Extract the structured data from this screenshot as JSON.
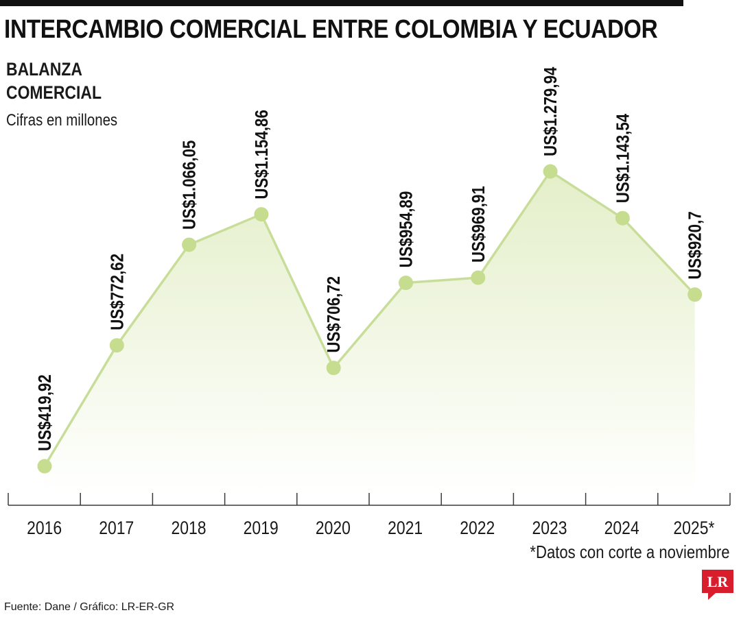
{
  "header": {
    "title": "INTERCAMBIO COMERCIAL ENTRE COLOMBIA Y ECUADOR",
    "subtitle_line1": "BALANZA",
    "subtitle_line2": "COMERCIAL",
    "units_note": "Cifras en millones"
  },
  "footnote": "*Datos con corte a noviembre",
  "source": "Fuente: Dane / Gráfico: LR-ER-GR",
  "logo_text": "LR",
  "colors": {
    "line": "#c9dd9a",
    "marker": "#c6dc8e",
    "area_top": "#e4efc9",
    "area_bottom": "#ffffff",
    "axis": "#3a3a3a",
    "logo": "#d81e2c"
  },
  "chart_data": {
    "type": "line",
    "area_fill": true,
    "x": [
      "2016",
      "2017",
      "2018",
      "2019",
      "2020",
      "2021",
      "2022",
      "2023",
      "2024",
      "2025*"
    ],
    "values": [
      419.92,
      772.62,
      1066.05,
      1154.86,
      706.72,
      954.89,
      969.91,
      1279.94,
      1143.54,
      920.7
    ],
    "data_labels": [
      "US$419,92",
      "US$772,62",
      "US$1.066,05",
      "US$1.154,86",
      "US$706,72",
      "US$954,89",
      "US$969,91",
      "US$1.279,94",
      "US$1.143,54",
      "US$920,7"
    ],
    "xlabel": "",
    "ylabel": "",
    "ylim": [
      340,
      1340
    ],
    "grid": false,
    "legend": "none"
  }
}
